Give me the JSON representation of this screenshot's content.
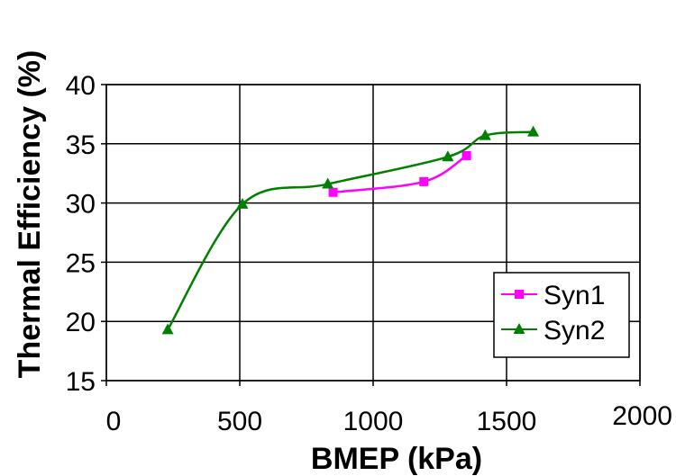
{
  "chart_data": {
    "type": "line",
    "title": "",
    "xlabel": "BMEP (kPa)",
    "ylabel": "Thermal Efficiency (%)",
    "xlim": [
      0,
      2000
    ],
    "ylim": [
      15,
      40
    ],
    "xticks": [
      0,
      500,
      1000,
      1500,
      2000
    ],
    "yticks": [
      15,
      20,
      25,
      30,
      35,
      40
    ],
    "grid": true,
    "legend_position": "right",
    "series": [
      {
        "name": "Syn1",
        "color": "#ff00ff",
        "marker": "square",
        "x": [
          850,
          1190,
          1350
        ],
        "y": [
          30.9,
          31.8,
          34.0
        ]
      },
      {
        "name": "Syn2",
        "color": "#008000",
        "marker": "triangle",
        "x": [
          230,
          510,
          830,
          1280,
          1420,
          1600
        ],
        "y": [
          19.3,
          29.9,
          31.6,
          33.9,
          35.7,
          36.0
        ]
      }
    ]
  }
}
